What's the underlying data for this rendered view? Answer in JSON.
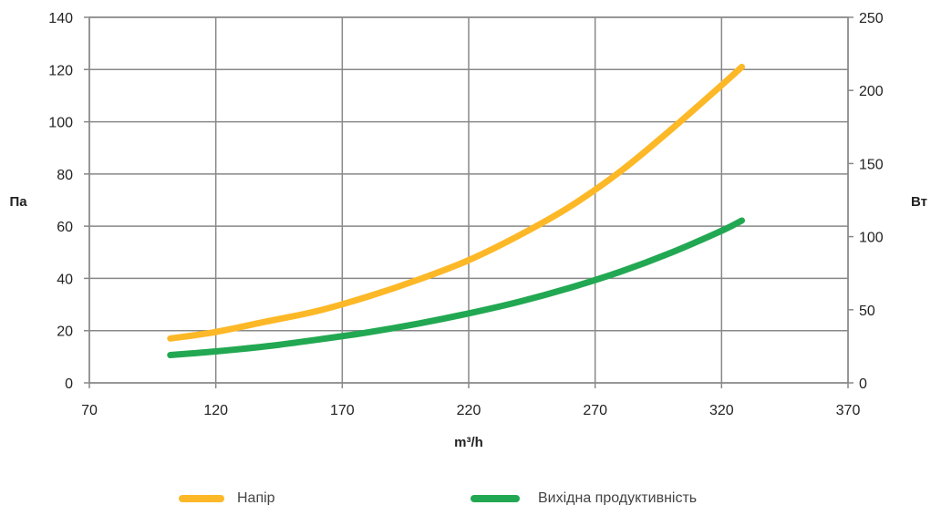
{
  "chart_data": {
    "type": "line",
    "title": "",
    "xlabel": "m³/h",
    "ylabel_left": "Па",
    "ylabel_right": "Вт",
    "xlim": [
      70,
      370
    ],
    "ylim_left": [
      0,
      140
    ],
    "ylim_right": [
      0,
      250
    ],
    "x_ticks": [
      "70",
      "120",
      "170",
      "220",
      "270",
      "320",
      "370"
    ],
    "y_left_ticks": [
      "0",
      "20",
      "40",
      "60",
      "80",
      "100",
      "120",
      "140"
    ],
    "y_right_ticks": [
      "0",
      "50",
      "100",
      "150",
      "200",
      "250"
    ],
    "grid": true,
    "legend_position": "bottom",
    "series": [
      {
        "name": "Напір",
        "axis": "left",
        "color": "#FDB827",
        "x": [
          102,
          120,
          140,
          160,
          180,
          200,
          220,
          240,
          260,
          280,
          300,
          320,
          328
        ],
        "y": [
          17,
          19.5,
          23.5,
          27.5,
          33,
          39.5,
          47,
          56.5,
          67.5,
          81,
          97,
          114,
          121
        ]
      },
      {
        "name": "Вихідна продуктивність",
        "axis": "right",
        "color": "#22A852",
        "x": [
          102,
          120,
          140,
          160,
          180,
          200,
          220,
          240,
          260,
          280,
          300,
          320,
          328
        ],
        "y": [
          19,
          21.5,
          25,
          29.5,
          34.5,
          40.5,
          47.5,
          55.5,
          65,
          76,
          89,
          104,
          111
        ]
      }
    ]
  }
}
